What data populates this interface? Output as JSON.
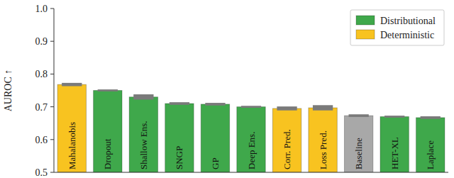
{
  "chart_data": {
    "type": "bar",
    "categories": [
      "Mahalanobis",
      "Dropout",
      "Shallow Ens.",
      "SNGP",
      "GP",
      "Deep Ens.",
      "Corr. Pred.",
      "Loss Pred.",
      "Baseline",
      "HET-XL",
      "Laplace"
    ],
    "series": [
      {
        "name": "Distributional",
        "color": "#3fa84b",
        "values": [
          null,
          0.75,
          0.73,
          0.71,
          0.708,
          0.7,
          null,
          null,
          null,
          0.67,
          0.667
        ],
        "errors": [
          null,
          0.003,
          0.008,
          0.004,
          0.004,
          0.003,
          null,
          null,
          null,
          0.003,
          0.004
        ]
      },
      {
        "name": "Deterministic",
        "color": "#f8c320",
        "values": [
          0.768,
          null,
          null,
          null,
          null,
          null,
          0.695,
          0.697,
          null,
          null,
          null
        ],
        "errors": [
          0.005,
          null,
          null,
          null,
          null,
          null,
          0.006,
          0.008,
          null,
          null,
          null
        ]
      },
      {
        "color": "#a8a8a8",
        "values": [
          null,
          null,
          null,
          null,
          null,
          null,
          null,
          null,
          0.673,
          null,
          null
        ],
        "errors": [
          null,
          null,
          null,
          null,
          null,
          null,
          null,
          null,
          0.004,
          null,
          null
        ]
      }
    ],
    "y_label": "AUROC ↑",
    "ylim": [
      0.5,
      1.0
    ],
    "yticks": [
      0.5,
      0.6,
      0.7,
      0.8,
      0.9,
      {
        "value": 1.0,
        "label": "1.0"
      }
    ],
    "grid": false,
    "legend": "upper right"
  }
}
